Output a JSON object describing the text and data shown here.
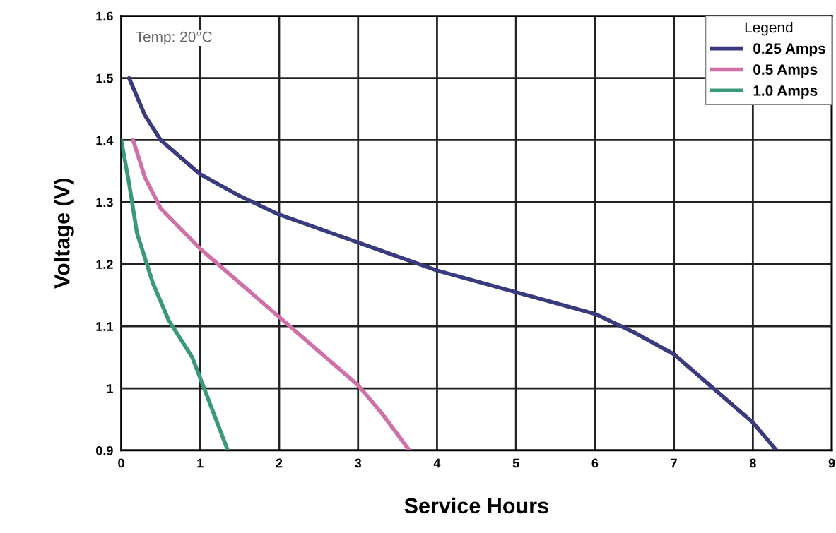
{
  "chart_data": {
    "type": "line",
    "xlabel": "Service Hours",
    "ylabel": "Voltage (V)",
    "legend_title": "Legend",
    "legend": "top right",
    "grid": true,
    "annotations": [
      "Temp: 20°C"
    ],
    "xlim": [
      0,
      9
    ],
    "xticks": [
      0,
      1,
      2,
      3,
      4,
      5,
      6,
      7,
      8,
      9
    ],
    "ylim": [
      0.9,
      1.6
    ],
    "yticks": [
      0.9,
      1,
      1.1,
      1.2,
      1.3,
      1.4,
      1.5,
      1.6
    ],
    "series": [
      {
        "name": "0.25 Amps",
        "color": "#3a3a7e",
        "x": [
          0.1,
          0.3,
          0.5,
          1,
          1.5,
          2,
          3,
          4,
          5,
          6,
          6.5,
          7,
          7.5,
          8,
          8.3
        ],
        "values": [
          1.5,
          1.44,
          1.4,
          1.345,
          1.31,
          1.28,
          1.235,
          1.19,
          1.155,
          1.12,
          1.09,
          1.055,
          1.0,
          0.945,
          0.9
        ]
      },
      {
        "name": "0.5 Amps",
        "color": "#d070a8",
        "x": [
          0.15,
          0.3,
          0.5,
          1,
          1.5,
          2,
          2.5,
          3,
          3.3,
          3.65
        ],
        "values": [
          1.4,
          1.34,
          1.29,
          1.225,
          1.17,
          1.115,
          1.06,
          1.005,
          0.96,
          0.9
        ]
      },
      {
        "name": "1.0 Amps",
        "color": "#3a9a78",
        "x": [
          0,
          0.1,
          0.2,
          0.4,
          0.6,
          0.9,
          1.05,
          1.2,
          1.35
        ],
        "values": [
          1.4,
          1.33,
          1.25,
          1.17,
          1.11,
          1.05,
          1.0,
          0.95,
          0.9
        ]
      }
    ]
  }
}
